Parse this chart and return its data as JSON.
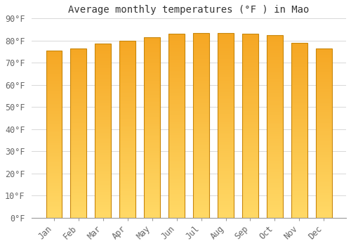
{
  "title": "Average monthly temperatures (°F ) in Mao",
  "months": [
    "Jan",
    "Feb",
    "Mar",
    "Apr",
    "May",
    "Jun",
    "Jul",
    "Aug",
    "Sep",
    "Oct",
    "Nov",
    "Dec"
  ],
  "values": [
    75.5,
    76.5,
    78.5,
    80.0,
    81.5,
    83.0,
    83.5,
    83.5,
    83.0,
    82.5,
    79.0,
    76.5
  ],
  "bar_color_top": "#F5A623",
  "bar_color_bottom": "#FFD966",
  "bar_edge_color": "#C8860A",
  "background_color": "#ffffff",
  "grid_color": "#d8d8d8",
  "ylim": [
    0,
    90
  ],
  "yticks": [
    0,
    10,
    20,
    30,
    40,
    50,
    60,
    70,
    80,
    90
  ],
  "tick_label_color": "#666666",
  "title_fontsize": 10,
  "tick_fontsize": 8.5,
  "font_family": "monospace",
  "bar_width": 0.65
}
